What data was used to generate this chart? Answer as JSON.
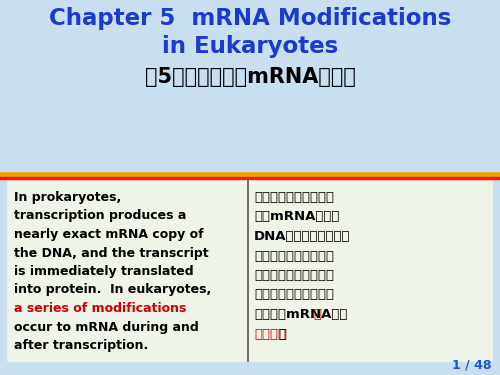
{
  "title_line1": "Chapter 5  mRNA Modifications",
  "title_line2": "in Eukaryotes",
  "title_chinese": "第5章　真核生物mRNA的修饰",
  "title_color": "#1a3ccc",
  "title_chinese_color": "#000000",
  "bg_color": "#c8dff0",
  "separator_color_top": "#f5a300",
  "separator_color_bottom": "#e82010",
  "box_bg_color": "#eef4e8",
  "box_border_color": "#555555",
  "left_text_lines": [
    {
      "text": "In prokaryotes,",
      "red": false
    },
    {
      "text": "transcription produces a",
      "red": false
    },
    {
      "text": "nearly exact mRNA copy of",
      "red": false
    },
    {
      "text": "the DNA, and the transcript",
      "red": false
    },
    {
      "text": "is immediately translated",
      "red": false
    },
    {
      "text": "into protein.  In eukaryotes,",
      "red": false
    },
    {
      "text": "a series of modifications",
      "red": true
    },
    {
      "text": "occur to mRNA during and",
      "red": false
    },
    {
      "text": "after transcription.",
      "red": false
    }
  ],
  "right_text_lines": [
    {
      "text": "在原核生物中，转录产",
      "red": false
    },
    {
      "text": "生的mRNA几乎是",
      "red": false
    },
    {
      "text": "DNA的准确拷贝，并且",
      "red": false
    },
    {
      "text": "这一转录产物会立即被",
      "red": false
    },
    {
      "text": "转译成蛋白质。在真核",
      "red": false
    },
    {
      "text": "生物中，转录时以及转",
      "red": false
    },
    {
      "text": "录后会对mRNA进行",
      "red": false,
      "suffix": "一",
      "suffix_red": true
    },
    {
      "text": "系列修饰",
      "red": true,
      "suffix": "。",
      "suffix_red": false
    }
  ],
  "page_num": "1 / 48",
  "page_num_color": "#1a5acc",
  "text_color_black": "#000000",
  "text_color_red": "#cc0000"
}
